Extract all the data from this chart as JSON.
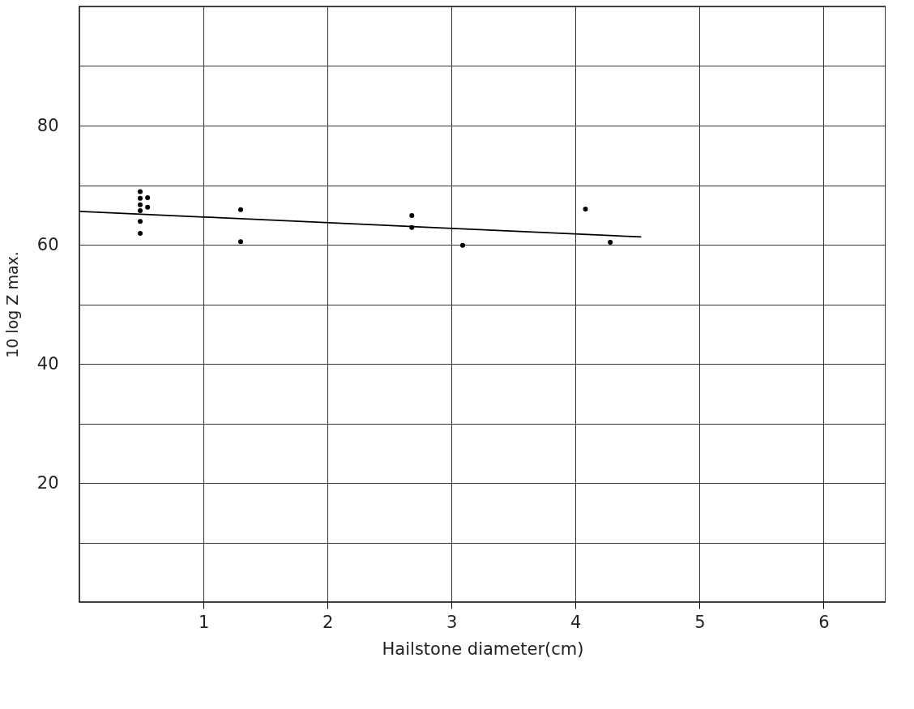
{
  "chart_data": {
    "type": "scatter",
    "xlabel": "Hailstone diameter(cm)",
    "ylabel": "10 log Z max.",
    "xlim": [
      0,
      6.5
    ],
    "ylim": [
      0,
      100
    ],
    "xticks": [
      1,
      2,
      3,
      4,
      5,
      6
    ],
    "yticks": [
      {
        "value": 10,
        "label": null
      },
      20,
      {
        "value": 30,
        "label": null
      },
      40,
      {
        "value": 50,
        "label": null
      },
      60,
      {
        "value": 70,
        "label": null
      },
      80,
      {
        "value": 90,
        "label": null
      }
    ],
    "grid": true,
    "series": [
      {
        "color": "#000000",
        "marker": "circle",
        "x": [
          0.49,
          0.49,
          0.49,
          0.49,
          0.49,
          0.49,
          0.55,
          0.55,
          1.3,
          1.3,
          2.68,
          2.68,
          3.09,
          4.08,
          4.28
        ],
        "values": [
          68.9,
          67.8,
          66.7,
          65.7,
          63.9,
          61.9,
          67.9,
          66.3,
          65.9,
          60.5,
          64.9,
          62.9,
          59.9,
          66.0,
          60.4
        ]
      },
      {
        "type": "line",
        "color": "#000000",
        "line_style": "solid",
        "x": [
          0,
          4.53
        ],
        "values": [
          65.6,
          61.3
        ]
      }
    ]
  }
}
